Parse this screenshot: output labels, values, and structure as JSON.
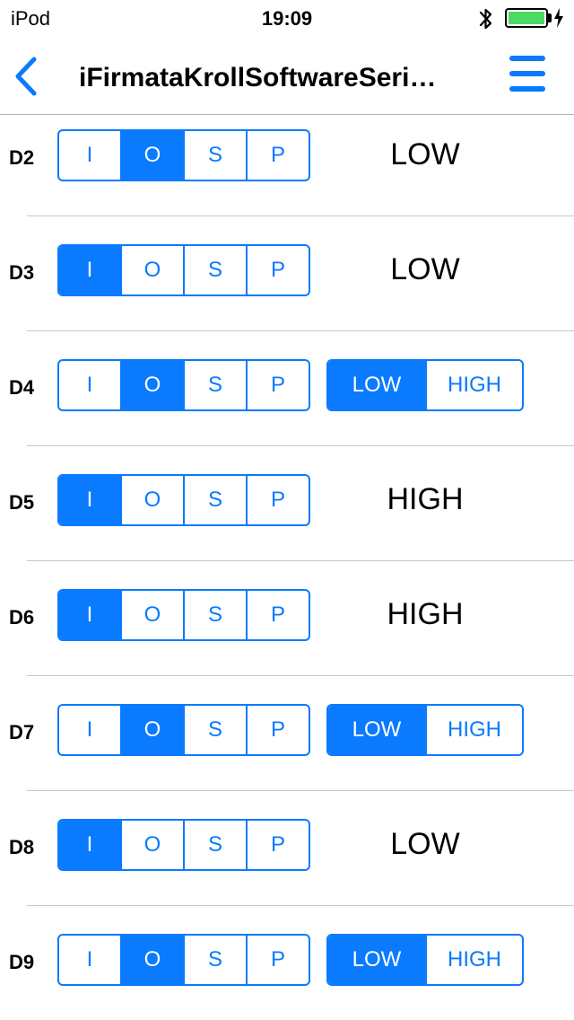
{
  "status_bar": {
    "carrier": "iPod",
    "time": "19:09",
    "battery_level": 1.0,
    "icons": [
      "bluetooth-icon",
      "battery-icon",
      "charging-icon"
    ]
  },
  "nav": {
    "title": "iFirmataKrollSoftwareSeri…",
    "back_icon": "chevron-left-icon",
    "menu_icon": "hamburger-menu-icon"
  },
  "colors": {
    "accent": "#0a7aff",
    "battery": "#4cd964",
    "divider": "#c8c7cc"
  },
  "modes": [
    "I",
    "O",
    "S",
    "P"
  ],
  "pins": [
    {
      "name": "D2",
      "mode": "O",
      "value": "LOW",
      "value_editable": false
    },
    {
      "name": "D3",
      "mode": "I",
      "value": "LOW",
      "value_editable": false
    },
    {
      "name": "D4",
      "mode": "O",
      "value": "LOW",
      "value_editable": true,
      "options": [
        "LOW",
        "HIGH"
      ]
    },
    {
      "name": "D5",
      "mode": "I",
      "value": "HIGH",
      "value_editable": false
    },
    {
      "name": "D6",
      "mode": "I",
      "value": "HIGH",
      "value_editable": false
    },
    {
      "name": "D7",
      "mode": "O",
      "value": "LOW",
      "value_editable": true,
      "options": [
        "LOW",
        "HIGH"
      ]
    },
    {
      "name": "D8",
      "mode": "I",
      "value": "LOW",
      "value_editable": false
    },
    {
      "name": "D9",
      "mode": "O",
      "value": "LOW",
      "value_editable": true,
      "options": [
        "LOW",
        "HIGH"
      ]
    }
  ]
}
